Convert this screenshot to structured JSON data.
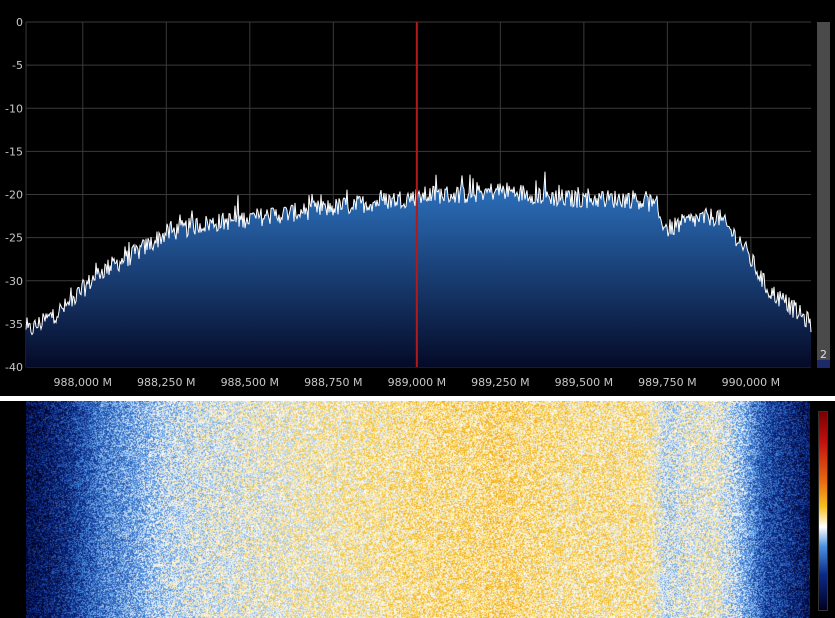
{
  "spectrum": {
    "y_ticks": [
      "0",
      "-5",
      "-10",
      "-15",
      "-20",
      "-25",
      "-30",
      "-35",
      "-40"
    ],
    "x_ticks": [
      "988,000 M",
      "988,250 M",
      "988,500 M",
      "988,750 M",
      "989,000 M",
      "989,250 M",
      "989,500 M",
      "989,750 M",
      "990,000 M"
    ],
    "slider_value": "2",
    "center_frequency_label": "989,000 M",
    "colors": {
      "background": "#000000",
      "grid": "#3a3a3a",
      "trace": "#ffffff",
      "fill_top": "#2f78c8",
      "fill_bottom": "#050a28",
      "center_marker": "#b01a1a",
      "label": "#c8c8c8"
    }
  },
  "chart_data": {
    "type": "area",
    "title": "",
    "xlabel": "",
    "ylabel": "",
    "ylim": [
      -40,
      0
    ],
    "xlim": [
      987.83,
      990.18
    ],
    "x_unit": "M",
    "grid": true,
    "series": [
      {
        "x": [
          987.83,
          987.95,
          988.05,
          988.15,
          988.25,
          988.35,
          988.45,
          988.55,
          988.65,
          988.75,
          988.85,
          988.95,
          989.05,
          989.15,
          989.25,
          989.35,
          989.45,
          989.55,
          989.65,
          989.7,
          989.75,
          989.82,
          989.9,
          989.97,
          990.05,
          990.12,
          990.18
        ],
        "values": [
          -36,
          -33,
          -29,
          -27,
          -24.5,
          -23.5,
          -23,
          -22.5,
          -22,
          -21.5,
          -21,
          -20.5,
          -20,
          -20,
          -19.5,
          -20,
          -20.5,
          -20.5,
          -20.5,
          -21,
          -24,
          -23,
          -22.5,
          -25.5,
          -31,
          -33,
          -35
        ]
      }
    ],
    "center_marker_x": 989.0
  },
  "waterfall": {
    "colorbar_colors": [
      "#7a0000",
      "#c01010",
      "#e86a10",
      "#f5c020",
      "#ffffff",
      "#4a90e0",
      "#0b2a8a",
      "#000020"
    ]
  }
}
